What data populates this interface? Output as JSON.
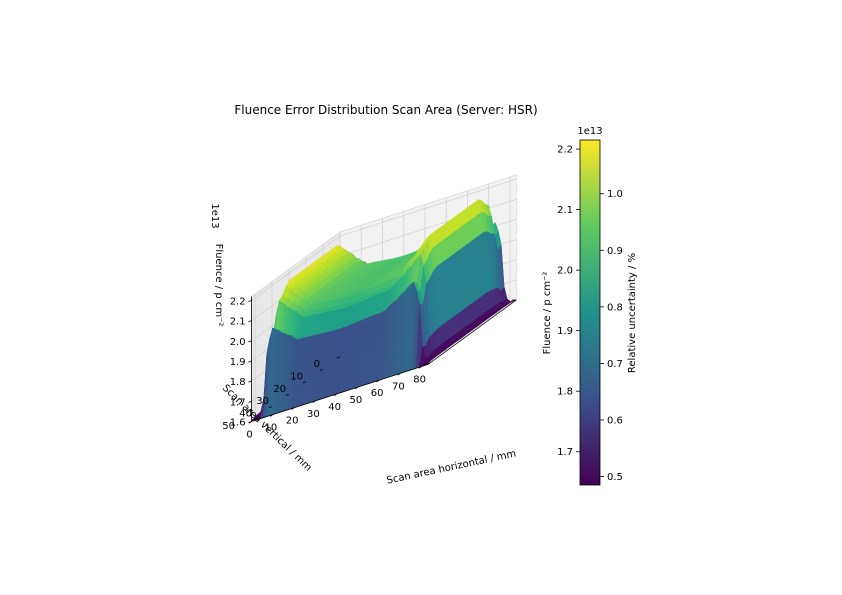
{
  "chart_data": {
    "type": "surface3d",
    "title": "Fluence Error Distribution Scan Area (Server: HSR)",
    "xlabel": "Scan area horizontal / mm",
    "ylabel": "Scan area vertical / mm",
    "zlabel": "Fluence / p cm⁻²",
    "z_offset_label": "1e13",
    "x_ticks": [
      "0",
      "10",
      "20",
      "30",
      "40",
      "50",
      "60",
      "70",
      "80"
    ],
    "y_ticks": [
      "0",
      "10",
      "20",
      "30",
      "40",
      "50"
    ],
    "z_ticks": [
      "1.6",
      "1.7",
      "1.8",
      "1.9",
      "2.0",
      "2.1",
      "2.2"
    ],
    "xlim": [
      0,
      83
    ],
    "ylim": [
      0,
      52
    ],
    "zlim": [
      1.6,
      2.22
    ],
    "surface": {
      "x_profile": [
        [
          0,
          1.62
        ],
        [
          2,
          1.6
        ],
        [
          4,
          1.72
        ],
        [
          6,
          2.08
        ],
        [
          8,
          2.2
        ],
        [
          10,
          2.18
        ],
        [
          13,
          2.14
        ],
        [
          16,
          2.11
        ],
        [
          20,
          2.06
        ],
        [
          40,
          2.04
        ],
        [
          60,
          2.06
        ],
        [
          66,
          2.11
        ],
        [
          70,
          2.15
        ],
        [
          73,
          2.19
        ],
        [
          75,
          2.2
        ],
        [
          77,
          2.08
        ],
        [
          79,
          1.72
        ],
        [
          81,
          1.6
        ],
        [
          83,
          1.62
        ]
      ],
      "y_profile": [
        [
          0,
          0.0
        ],
        [
          3,
          0.22
        ],
        [
          6,
          0.06
        ],
        [
          12,
          0.0
        ],
        [
          40,
          0.0
        ],
        [
          46,
          0.06
        ],
        [
          49,
          0.22
        ],
        [
          52,
          0.0
        ]
      ],
      "edge_value": 1.6,
      "peak_value": 2.2
    },
    "colorbars": [
      {
        "label": "Fluence / p cm⁻²",
        "offset_label": "1e13",
        "ticks": [
          "1.7",
          "1.8",
          "1.9",
          "2.0",
          "2.1",
          "2.2"
        ],
        "range": [
          1.645,
          2.215
        ],
        "colormap": "viridis"
      },
      {
        "label": "Relative uncertainty / %",
        "ticks": [
          "0.5",
          "0.6",
          "0.7",
          "0.8",
          "0.9",
          "1.0"
        ],
        "range": [
          0.485,
          1.095
        ],
        "colormap": "viridis"
      }
    ],
    "grid": true,
    "colors": [
      "#440154",
      "#3b528b",
      "#21918c",
      "#5ec962",
      "#fde725"
    ]
  }
}
